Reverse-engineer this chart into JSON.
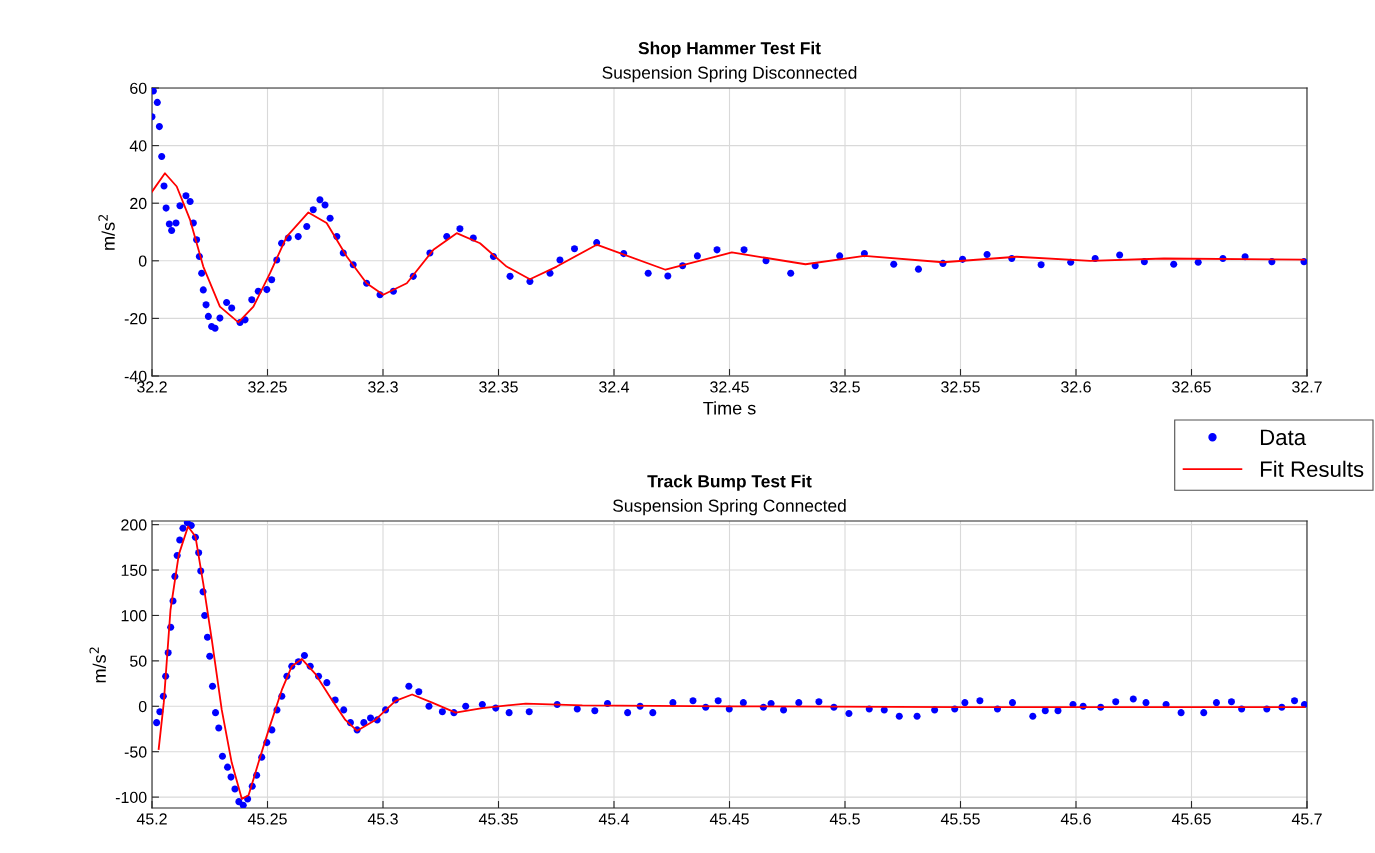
{
  "chart_data": [
    {
      "type": "scatter",
      "title": "Shop Hammer Test Fit",
      "subtitle": "Suspension Spring Disconnected",
      "xlabel": "Time s",
      "ylabel": "m/s$^{2}$",
      "xlim": [
        32.2,
        32.7
      ],
      "xticks": [
        32.2,
        32.25,
        32.3,
        32.35,
        32.4,
        32.45,
        32.5,
        32.55,
        32.6,
        32.65,
        32.7
      ],
      "ylim": [
        -40,
        60
      ],
      "yticks": [
        -40,
        -20,
        0,
        20,
        40,
        60
      ],
      "grid": true,
      "legend": "bottom right",
      "series": [
        {
          "name": "Data",
          "marker": "circle",
          "color": "#0000ff",
          "x": [
            32.2,
            32.2006,
            32.2023,
            32.2032,
            32.2042,
            32.2052,
            32.2061,
            32.2075,
            32.2085,
            32.2104,
            32.2121,
            32.2147,
            32.2165,
            32.2179,
            32.2193,
            32.2205,
            32.2215,
            32.2222,
            32.2234,
            32.2244,
            32.2258,
            32.2273,
            32.2294,
            32.2323,
            32.2345,
            32.2381,
            32.2403,
            32.2432,
            32.246,
            32.2497,
            32.2518,
            32.254,
            32.2561,
            32.259,
            32.2633,
            32.267,
            32.2698,
            32.2727,
            32.2749,
            32.2771,
            32.28,
            32.2828,
            32.2871,
            32.2929,
            32.2987,
            32.3045,
            32.3131,
            32.3203,
            32.3276,
            32.3333,
            32.3391,
            32.3478,
            32.355,
            32.3636,
            32.3723,
            32.3766,
            32.3829,
            32.3925,
            32.4042,
            32.4148,
            32.4233,
            32.4297,
            32.4361,
            32.4446,
            32.4563,
            32.4658,
            32.4765,
            32.4871,
            32.4977,
            32.5084,
            32.5211,
            32.5318,
            32.5424,
            32.5509,
            32.5615,
            32.5722,
            32.5849,
            32.5977,
            32.6083,
            32.6189,
            32.6296,
            32.6423,
            32.6529,
            32.6636,
            32.6732,
            32.6848,
            32.6987
          ],
          "values": [
            50,
            59,
            55,
            46.6,
            36.2,
            26,
            18.3,
            12.8,
            10.5,
            13.1,
            19.1,
            22.6,
            20.6,
            13.1,
            7.3,
            1.5,
            -4.3,
            -10.1,
            -15.3,
            -19.3,
            -22.8,
            -23.4,
            -19.9,
            -14.5,
            -16.4,
            -21.4,
            -20.5,
            -13.5,
            -10.6,
            -10,
            -6.6,
            0.3,
            6.1,
            7.9,
            8.4,
            11.9,
            17.7,
            21.2,
            19.4,
            14.8,
            8.4,
            2.7,
            -1.4,
            -7.8,
            -11.8,
            -10.6,
            -5.4,
            2.7,
            8.4,
            11.1,
            7.9,
            1.5,
            -5.4,
            -7.2,
            -4.3,
            0.3,
            4.2,
            6.3,
            2.5,
            -4.3,
            -5.3,
            -1.7,
            1.7,
            3.8,
            3.8,
            0,
            -4.3,
            -1.7,
            1.7,
            2.5,
            -1.2,
            -2.9,
            -0.9,
            0.5,
            2.2,
            0.8,
            -1.4,
            -0.5,
            0.8,
            2,
            -0.3,
            -1.2,
            -0.5,
            0.8,
            1.4,
            -0.3,
            -0.3
          ]
        },
        {
          "name": "Fit Results",
          "type": "line",
          "color": "#ff0000",
          "x": [
            32.2,
            32.2056,
            32.2107,
            32.2165,
            32.2222,
            32.2294,
            32.2374,
            32.2439,
            32.2511,
            32.2583,
            32.2677,
            32.2756,
            32.2843,
            32.2929,
            32.3001,
            32.3103,
            32.3218,
            32.3319,
            32.342,
            32.3535,
            32.3636,
            32.3752,
            32.3925,
            32.4223,
            32.451,
            32.4829,
            32.5084,
            32.5424,
            32.5743,
            32.6062,
            32.6381,
            32.6987
          ],
          "values": [
            24,
            30.4,
            25.8,
            14.2,
            -2,
            -15.9,
            -21.4,
            -15.9,
            -4.3,
            8.4,
            16.8,
            13.1,
            1.5,
            -7.8,
            -11.8,
            -7.8,
            3.8,
            9.6,
            6.1,
            -2,
            -6.4,
            -2,
            5.6,
            -3.1,
            2.9,
            -1.2,
            1.7,
            -0.5,
            1.4,
            0,
            0.8,
            0.4
          ]
        }
      ]
    },
    {
      "type": "scatter",
      "title": "Track Bump Test Fit",
      "subtitle": "Suspension Spring Connected",
      "ylabel": "m/s$^{2}$",
      "xlim": [
        45.2,
        45.7
      ],
      "xticks": [
        45.2,
        45.25,
        45.3,
        45.35,
        45.4,
        45.45,
        45.5,
        45.55,
        45.6,
        45.65,
        45.7
      ],
      "ylim": [
        -112,
        204
      ],
      "yticks": [
        -100,
        -50,
        0,
        50,
        100,
        150,
        200
      ],
      "grid": true,
      "series": [
        {
          "marker": "circle",
          "color": "#0000ff",
          "x": [
            45.202,
            45.2034,
            45.2049,
            45.2059,
            45.207,
            45.2081,
            45.2091,
            45.2099,
            45.2109,
            45.212,
            45.2134,
            45.2153,
            45.217,
            45.2188,
            45.2202,
            45.2211,
            45.2221,
            45.2228,
            45.224,
            45.225,
            45.2262,
            45.2275,
            45.2289,
            45.2305,
            45.2327,
            45.2342,
            45.2359,
            45.2376,
            45.2395,
            45.2414,
            45.2434,
            45.2453,
            45.2475,
            45.2497,
            45.2519,
            45.2541,
            45.2562,
            45.2584,
            45.2605,
            45.2634,
            45.266,
            45.2685,
            45.2721,
            45.2757,
            45.2793,
            45.283,
            45.2859,
            45.2888,
            45.2917,
            45.2946,
            45.2975,
            45.3011,
            45.3054,
            45.3112,
            45.3155,
            45.3199,
            45.3257,
            45.3307,
            45.3358,
            45.343,
            45.3488,
            45.3546,
            45.3633,
            45.3754,
            45.3841,
            45.3917,
            45.3972,
            45.4059,
            45.4113,
            45.4168,
            45.4255,
            45.4342,
            45.4397,
            45.4451,
            45.4499,
            45.456,
            45.4647,
            45.468,
            45.4734,
            45.48,
            45.4887,
            45.4952,
            45.5017,
            45.5105,
            45.517,
            45.5235,
            45.5312,
            45.5388,
            45.5475,
            45.5519,
            45.5584,
            45.566,
            45.5725,
            45.5813,
            45.5867,
            45.5922,
            45.5987,
            45.6031,
            45.6107,
            45.6172,
            45.6248,
            45.6303,
            45.639,
            45.6455,
            45.6553,
            45.6608,
            45.6673,
            45.6717,
            45.6826,
            45.6891,
            45.6946,
            45.6989
          ],
          "values": [
            -18,
            -6,
            11,
            33,
            59,
            87,
            116,
            143,
            166,
            183,
            196,
            202,
            199,
            186,
            169,
            149,
            126,
            100,
            76,
            55,
            22,
            -7,
            -24,
            -55,
            -67,
            -78,
            -91,
            -105,
            -109,
            -102,
            -88,
            -76,
            -56,
            -40,
            -26,
            -4,
            11,
            33,
            44,
            49,
            56,
            44,
            33,
            26,
            7,
            -4,
            -18,
            -26,
            -18,
            -13,
            -15,
            -4,
            7,
            22,
            16,
            0,
            -6,
            -7,
            0,
            2,
            -2,
            -7,
            -6,
            2,
            -3,
            -5,
            3,
            -7,
            0,
            -7,
            4,
            6,
            -1,
            6,
            -3,
            4,
            -1,
            3,
            -4,
            4,
            5,
            -1,
            -8,
            -3,
            -4,
            -11,
            -11,
            -4,
            -3,
            4,
            6,
            -3,
            4,
            -11,
            -5,
            -5,
            2,
            0,
            -1,
            5,
            8,
            4,
            2,
            -7,
            -7,
            4,
            5,
            -3,
            -3,
            -1,
            6,
            2
          ]
        },
        {
          "type": "line",
          "color": "#ff0000",
          "x": [
            45.2029,
            45.2051,
            45.208,
            45.2116,
            45.2156,
            45.2188,
            45.2222,
            45.2259,
            45.2302,
            45.2345,
            45.2389,
            45.2418,
            45.2461,
            45.2505,
            45.2562,
            45.2605,
            45.2649,
            45.2706,
            45.2779,
            45.2837,
            45.2888,
            45.2967,
            45.3054,
            45.3126,
            45.3213,
            45.3314,
            45.343,
            45.3618,
            45.3863,
            45.45,
            45.55,
            45.6989
          ],
          "values": [
            -47,
            4,
            106,
            167,
            198,
            187,
            135,
            73,
            -4,
            -62,
            -102,
            -98,
            -62,
            -26,
            18,
            44,
            52,
            36,
            7,
            -15,
            -27,
            -15,
            6,
            13,
            4,
            -7,
            -2,
            3,
            1,
            0,
            -1,
            -1
          ]
        }
      ]
    }
  ]
}
